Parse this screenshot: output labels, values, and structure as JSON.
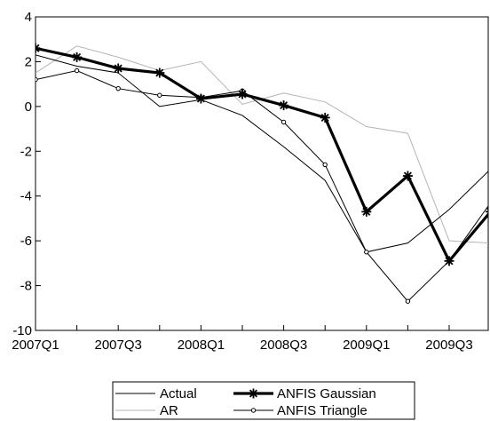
{
  "chart_data": {
    "type": "line",
    "x": [
      "2007Q1",
      "2007Q2",
      "2007Q3",
      "2007Q4",
      "2008Q1",
      "2008Q2",
      "2008Q3",
      "2008Q4",
      "2009Q1",
      "2009Q2",
      "2009Q3",
      "2009Q4"
    ],
    "x_tick_labels": [
      "2007Q1",
      "2007Q3",
      "2008Q1",
      "2008Q3",
      "2009Q1",
      "2009Q3"
    ],
    "ylim": [
      -10,
      4
    ],
    "y_ticks": [
      4,
      2,
      0,
      -2,
      -4,
      -6,
      -8,
      -10
    ],
    "grid": false,
    "legend_placement": "bottom-center",
    "series": [
      {
        "name": "Actual",
        "color": "#000000",
        "style": "thin",
        "values": [
          2.3,
          1.8,
          1.5,
          0.0,
          0.3,
          -0.4,
          -1.8,
          -3.3,
          -6.5,
          -6.1,
          -4.6,
          -2.8
        ]
      },
      {
        "name": "AR",
        "color": "#b4b4b4",
        "style": "thin",
        "values": [
          1.5,
          2.7,
          2.2,
          1.6,
          2.0,
          0.1,
          0.6,
          0.2,
          -0.9,
          -1.2,
          -6.0,
          -6.1
        ]
      },
      {
        "name": "ANFIS Gaussian",
        "color": "#000000",
        "style": "thick-star",
        "values": [
          2.6,
          2.2,
          1.7,
          1.5,
          0.35,
          0.55,
          0.05,
          -0.5,
          -4.7,
          -3.1,
          -6.9,
          -4.7
        ]
      },
      {
        "name": "ANFIS Triangle",
        "color": "#000000",
        "style": "thin-circle",
        "values": [
          1.2,
          1.6,
          0.8,
          0.5,
          0.4,
          0.7,
          -0.7,
          -2.6,
          -6.5,
          -8.7,
          -6.9,
          -4.3
        ]
      }
    ]
  }
}
